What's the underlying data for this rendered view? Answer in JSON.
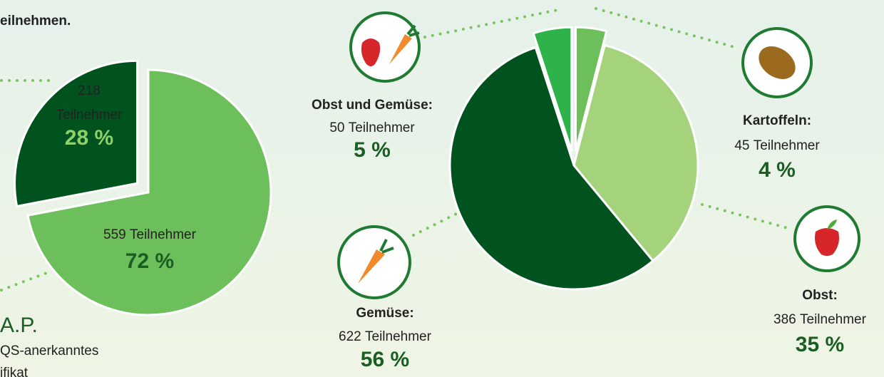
{
  "intro": "eilnehmen.",
  "gap_title": "A.P.",
  "gap_lines": [
    "QS-anerkanntes",
    "ifikat"
  ],
  "chart_data": [
    {
      "type": "pie",
      "values": [
        72,
        28
      ],
      "value_labels": [
        "72 %",
        "28 %"
      ],
      "counts": [
        559,
        218
      ],
      "unit": "Teilnehmer",
      "colors": [
        "#6dbf5b",
        "#00531f"
      ]
    },
    {
      "type": "pie",
      "categories": [
        "Kartoffeln:",
        "Obst:",
        "Gemüse:",
        "Obst und Gemüse:"
      ],
      "values": [
        4,
        35,
        56,
        5
      ],
      "value_labels": [
        "4 %",
        "35 %",
        "56 %",
        "5 %"
      ],
      "counts": [
        45,
        386,
        622,
        50
      ],
      "unit": "Teilnehmer",
      "colors": [
        "#6dbf5b",
        "#a4d37b",
        "#00531f",
        "#2db34a"
      ]
    }
  ]
}
